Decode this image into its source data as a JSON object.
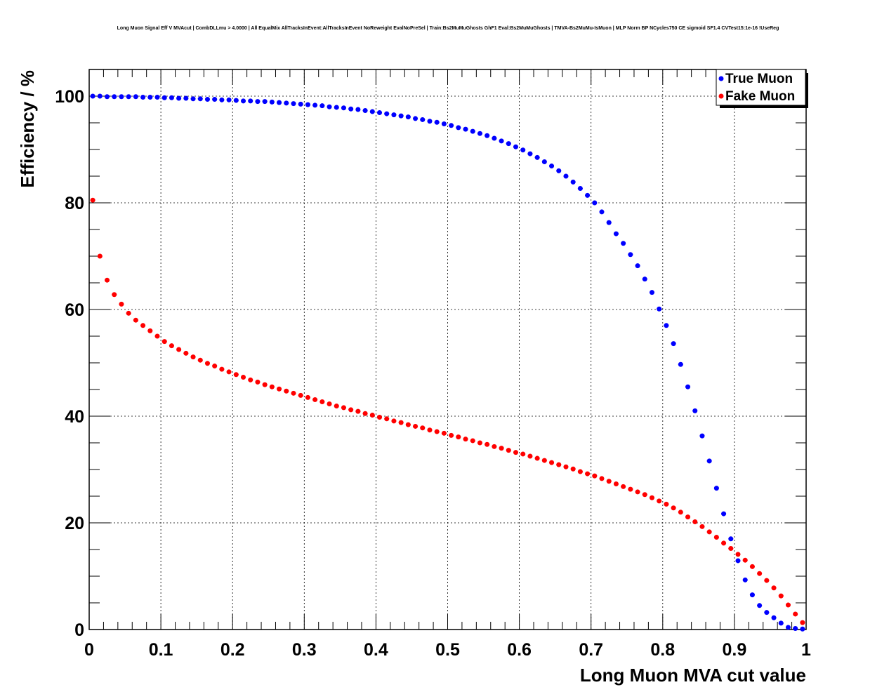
{
  "chart_data": {
    "type": "scatter",
    "title": "Long Muon Signal Eff V MVAcut | CombDLLmu > 4.0000 | All EqualMix AllTracksInEvent:AllTracksInEvent NoReweight EvalNoPreSel | Train:Bs2MuMuGhosts GhF1 Eval:Bs2MuMuGhosts | TMVA-Bs2MuMu-IsMuon | MLP Norm BP NCycles750 CE sigmoid SF1.4 CVTest15:1e-16 !UseReg",
    "xlabel": "Long Muon MVA cut value",
    "ylabel": "Efficiency / %",
    "xlim": [
      0,
      1
    ],
    "ylim": [
      0,
      105
    ],
    "xticks": [
      "0",
      "0.1",
      "0.2",
      "0.3",
      "0.4",
      "0.5",
      "0.6",
      "0.7",
      "0.8",
      "0.9",
      "1"
    ],
    "yticks": [
      "0",
      "20",
      "40",
      "60",
      "80",
      "100"
    ],
    "grid": true,
    "legend_position": "top-right",
    "series": [
      {
        "name": "True Muon",
        "color": "#0000ff",
        "x": [
          0.005,
          0.015,
          0.025,
          0.035,
          0.045,
          0.055,
          0.065,
          0.075,
          0.085,
          0.095,
          0.105,
          0.115,
          0.125,
          0.135,
          0.145,
          0.155,
          0.165,
          0.175,
          0.185,
          0.195,
          0.205,
          0.215,
          0.225,
          0.235,
          0.245,
          0.255,
          0.265,
          0.275,
          0.285,
          0.295,
          0.305,
          0.315,
          0.325,
          0.335,
          0.345,
          0.355,
          0.365,
          0.375,
          0.385,
          0.395,
          0.405,
          0.415,
          0.425,
          0.435,
          0.445,
          0.455,
          0.465,
          0.475,
          0.485,
          0.495,
          0.505,
          0.515,
          0.525,
          0.535,
          0.545,
          0.555,
          0.565,
          0.575,
          0.585,
          0.595,
          0.605,
          0.615,
          0.625,
          0.635,
          0.645,
          0.655,
          0.665,
          0.675,
          0.685,
          0.695,
          0.705,
          0.715,
          0.725,
          0.735,
          0.745,
          0.755,
          0.765,
          0.775,
          0.785,
          0.795,
          0.805,
          0.815,
          0.825,
          0.835,
          0.845,
          0.855,
          0.865,
          0.875,
          0.885,
          0.895,
          0.905,
          0.915,
          0.925,
          0.935,
          0.945,
          0.955,
          0.965,
          0.975,
          0.985,
          0.995
        ],
        "values": [
          100,
          100,
          99.9,
          99.9,
          99.9,
          99.9,
          99.9,
          99.8,
          99.8,
          99.8,
          99.7,
          99.7,
          99.6,
          99.6,
          99.5,
          99.5,
          99.4,
          99.4,
          99.3,
          99.3,
          99.2,
          99.1,
          99.1,
          99.0,
          99.0,
          98.9,
          98.8,
          98.7,
          98.6,
          98.5,
          98.4,
          98.3,
          98.2,
          98.0,
          97.9,
          97.8,
          97.6,
          97.5,
          97.3,
          97.1,
          96.9,
          96.7,
          96.5,
          96.3,
          96.1,
          95.8,
          95.6,
          95.3,
          95.1,
          94.8,
          94.5,
          94.1,
          93.8,
          93.4,
          93.0,
          92.6,
          92.1,
          91.6,
          91.1,
          90.5,
          89.9,
          89.2,
          88.5,
          87.7,
          86.9,
          86.0,
          85.0,
          83.9,
          82.7,
          81.4,
          80.0,
          78.3,
          76.3,
          74.2,
          72.4,
          70.3,
          68.2,
          65.7,
          63.2,
          60.1,
          57.0,
          53.6,
          49.7,
          45.5,
          41.0,
          36.3,
          31.6,
          26.5,
          21.7,
          17.0,
          12.9,
          9.3,
          6.5,
          4.5,
          3.2,
          2.2,
          1.2,
          0.4,
          0.2,
          0.1
        ]
      },
      {
        "name": "Fake Muon",
        "color": "#ff0000",
        "x": [
          0.005,
          0.015,
          0.025,
          0.035,
          0.045,
          0.055,
          0.065,
          0.075,
          0.085,
          0.095,
          0.105,
          0.115,
          0.125,
          0.135,
          0.145,
          0.155,
          0.165,
          0.175,
          0.185,
          0.195,
          0.205,
          0.215,
          0.225,
          0.235,
          0.245,
          0.255,
          0.265,
          0.275,
          0.285,
          0.295,
          0.305,
          0.315,
          0.325,
          0.335,
          0.345,
          0.355,
          0.365,
          0.375,
          0.385,
          0.395,
          0.405,
          0.415,
          0.425,
          0.435,
          0.445,
          0.455,
          0.465,
          0.475,
          0.485,
          0.495,
          0.505,
          0.515,
          0.525,
          0.535,
          0.545,
          0.555,
          0.565,
          0.575,
          0.585,
          0.595,
          0.605,
          0.615,
          0.625,
          0.635,
          0.645,
          0.655,
          0.665,
          0.675,
          0.685,
          0.695,
          0.705,
          0.715,
          0.725,
          0.735,
          0.745,
          0.755,
          0.765,
          0.775,
          0.785,
          0.795,
          0.805,
          0.815,
          0.825,
          0.835,
          0.845,
          0.855,
          0.865,
          0.875,
          0.885,
          0.895,
          0.905,
          0.915,
          0.925,
          0.935,
          0.945,
          0.955,
          0.965,
          0.975,
          0.985,
          0.995
        ],
        "values": [
          80.5,
          70.0,
          65.5,
          62.8,
          61.0,
          59.3,
          58.0,
          57.0,
          56.0,
          55.0,
          54.0,
          53.2,
          52.5,
          51.8,
          51.1,
          50.5,
          49.9,
          49.4,
          48.8,
          48.3,
          47.8,
          47.3,
          46.8,
          46.4,
          45.9,
          45.5,
          45.1,
          44.7,
          44.3,
          43.9,
          43.5,
          43.1,
          42.7,
          42.3,
          41.9,
          41.6,
          41.2,
          40.9,
          40.5,
          40.2,
          39.8,
          39.5,
          39.1,
          38.8,
          38.4,
          38.1,
          37.8,
          37.4,
          37.1,
          36.8,
          36.4,
          36.1,
          35.7,
          35.4,
          35.0,
          34.7,
          34.3,
          34.0,
          33.6,
          33.2,
          32.9,
          32.5,
          32.1,
          31.7,
          31.3,
          30.9,
          30.5,
          30.1,
          29.6,
          29.2,
          28.8,
          28.3,
          27.8,
          27.3,
          26.8,
          26.3,
          25.8,
          25.3,
          24.7,
          24.1,
          23.5,
          22.8,
          22.0,
          21.1,
          20.2,
          19.3,
          18.3,
          17.3,
          16.2,
          15.2,
          14.1,
          13.0,
          11.8,
          10.5,
          9.2,
          7.8,
          6.3,
          4.6,
          2.9,
          1.3
        ]
      }
    ]
  }
}
